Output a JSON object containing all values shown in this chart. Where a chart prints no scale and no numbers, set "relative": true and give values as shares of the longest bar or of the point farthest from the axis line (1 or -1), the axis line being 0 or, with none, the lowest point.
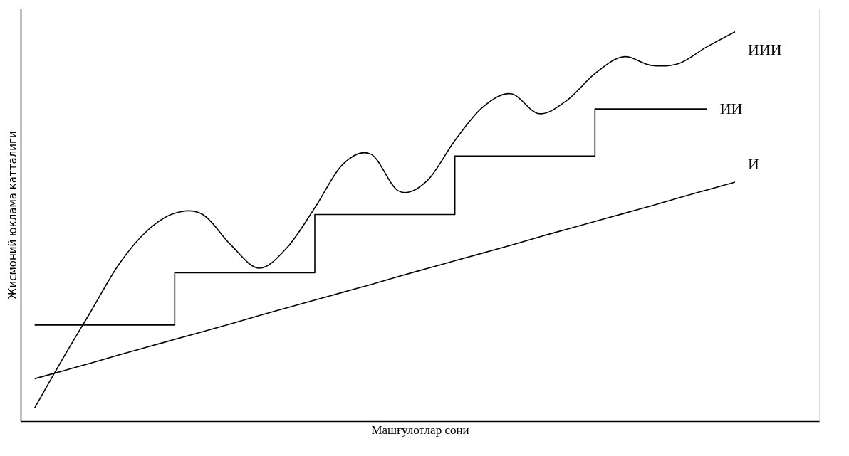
{
  "chart_data": {
    "type": "line",
    "relative": true,
    "xlabel": "Машғулотлар сони",
    "ylabel": "Жисмоний юклама катталиги",
    "categories": [
      null,
      null,
      null,
      null,
      null,
      null,
      null,
      null,
      null,
      null,
      null,
      null,
      null,
      null,
      null,
      null,
      null,
      null,
      null,
      null,
      null,
      null,
      null,
      null,
      null,
      null
    ],
    "series": [
      {
        "name": "И",
        "color": "#000000",
        "values": [
          0.109,
          0.129,
          0.149,
          0.17,
          0.19,
          0.21,
          0.23,
          0.25,
          0.271,
          0.291,
          0.311,
          0.331,
          0.351,
          0.372,
          0.392,
          0.412,
          0.432,
          0.452,
          0.473,
          0.493,
          0.513,
          0.533,
          0.553,
          0.574,
          0.594,
          0.614
        ]
      },
      {
        "name": "ИИ",
        "type": "step",
        "color": "#000000",
        "values": [
          0.247,
          0.247,
          0.247,
          0.247,
          0.247,
          0.381,
          0.381,
          0.381,
          0.381,
          0.381,
          0.531,
          0.531,
          0.531,
          0.531,
          0.531,
          0.681,
          0.681,
          0.681,
          0.681,
          0.681,
          0.802,
          0.802,
          0.802,
          0.802,
          0.802,
          null
        ]
      },
      {
        "name": "ИИИ",
        "color": "#000000",
        "values": [
          0.034,
          0.16,
          0.281,
          0.402,
          0.488,
          0.534,
          0.531,
          0.453,
          0.393,
          0.445,
          0.548,
          0.66,
          0.686,
          0.591,
          0.617,
          0.721,
          0.807,
          0.841,
          0.79,
          0.824,
          0.893,
          0.936,
          0.914,
          0.919,
          0.962,
          1.0
        ]
      }
    ],
    "legend": false,
    "grid": false,
    "tick_labels": false,
    "marker": "none",
    "line_style": "solid"
  }
}
